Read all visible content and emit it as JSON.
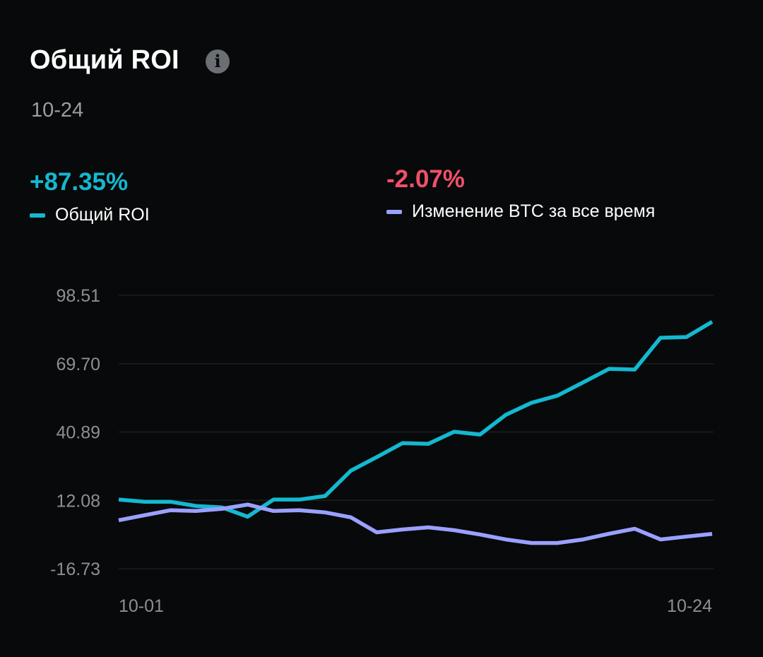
{
  "header": {
    "title": "Общий ROI",
    "info_icon": "info-icon",
    "date": "10-24"
  },
  "stats": {
    "roi": {
      "value": "+87.35%",
      "label": "Общий ROI",
      "color": "#14b8cf"
    },
    "btc": {
      "value": "-2.07%",
      "label": "Изменение BTC за все время",
      "color": "#f0506a",
      "swatch_color": "#9aa0ff"
    }
  },
  "chart_data": {
    "type": "line",
    "title": "Общий ROI",
    "xlabel": "",
    "ylabel": "",
    "ylim": [
      -16.73,
      98.51
    ],
    "yticks": [
      "98.51",
      "69.70",
      "40.89",
      "12.08",
      "-16.73"
    ],
    "ytick_values": [
      98.51,
      69.7,
      40.89,
      12.08,
      -16.73
    ],
    "xtick_labels": [
      "10-01",
      "10-24"
    ],
    "x": [
      "10-01",
      "10-02",
      "10-03",
      "10-04",
      "10-05",
      "10-06",
      "10-07",
      "10-08",
      "10-09",
      "10-10",
      "10-11",
      "10-12",
      "10-13",
      "10-14",
      "10-15",
      "10-16",
      "10-17",
      "10-18",
      "10-19",
      "10-20",
      "10-21",
      "10-22",
      "10-23",
      "10-24"
    ],
    "grid": true,
    "series": [
      {
        "name": "Общий ROI",
        "color": "#14b8cf",
        "values": [
          12.4,
          11.5,
          11.5,
          9.7,
          9.1,
          5.2,
          12.4,
          12.4,
          13.9,
          24.6,
          30.3,
          36.2,
          35.9,
          41.0,
          39.8,
          48.1,
          53.2,
          56.2,
          61.8,
          67.5,
          67.2,
          80.6,
          80.9,
          87.35
        ]
      },
      {
        "name": "Изменение BTC за все время",
        "color": "#9aa0ff",
        "values": [
          3.7,
          5.8,
          7.9,
          7.6,
          8.5,
          10.3,
          7.6,
          7.9,
          7.0,
          4.9,
          -1.4,
          -0.2,
          0.7,
          -0.5,
          -2.3,
          -4.4,
          -5.9,
          -5.9,
          -4.4,
          -2.0,
          0.1,
          -4.4,
          -3.2,
          -2.07
        ]
      }
    ]
  }
}
